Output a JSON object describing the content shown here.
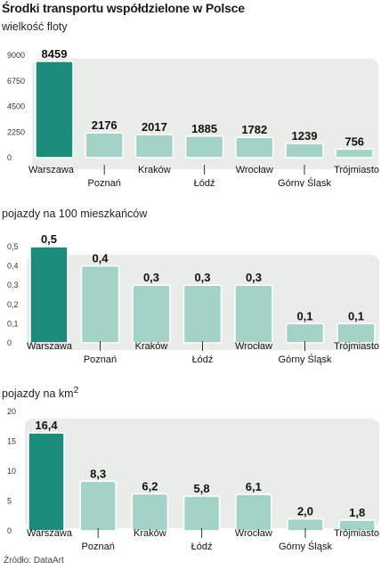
{
  "page_title": "Środki transportu współdzielone w Polsce",
  "source": "Źródło: DataArt",
  "colors": {
    "highlight": "#1a8c79",
    "bar": "#a3d3c6",
    "band": "#e9ece9",
    "tick_line": "#333333"
  },
  "chart_data": [
    {
      "type": "bar",
      "title": "wielkość floty",
      "title_sup": "",
      "categories": [
        "Warszawa",
        "Poznań",
        "Kraków",
        "Łódź",
        "Wrocław",
        "Górny Śląsk",
        "Trójmiasto"
      ],
      "values": [
        8459,
        2176,
        2017,
        1885,
        1782,
        1239,
        756
      ],
      "value_labels": [
        "8459",
        "2176",
        "2017",
        "1885",
        "1782",
        "1239",
        "756"
      ],
      "yticks": [
        "0",
        "2250",
        "4500",
        "6750",
        "9000"
      ],
      "ylim": [
        0,
        9000
      ],
      "xlabel": "",
      "ylabel": "",
      "grid": false,
      "highlight_index": 0
    },
    {
      "type": "bar",
      "title": "pojazdy na 100 mieszkańców",
      "title_sup": "",
      "categories": [
        "Warszawa",
        "Poznań",
        "Kraków",
        "Łódź",
        "Wrocław",
        "Górny Śląsk",
        "Trójmiasto"
      ],
      "values": [
        0.5,
        0.4,
        0.3,
        0.3,
        0.3,
        0.1,
        0.1
      ],
      "value_labels": [
        "0,5",
        "0,4",
        "0,3",
        "0,3",
        "0,3",
        "0,1",
        "0,1"
      ],
      "yticks": [
        "0",
        "0,1",
        "0,2",
        "0,3",
        "0,4",
        "0,5"
      ],
      "ylim": [
        0,
        0.5
      ],
      "xlabel": "",
      "ylabel": "",
      "grid": false,
      "highlight_index": 0
    },
    {
      "type": "bar",
      "title": "pojazdy na km",
      "title_sup": "2",
      "categories": [
        "Warszawa",
        "Poznań",
        "Kraków",
        "Łódź",
        "Wrocław",
        "Górny Śląsk",
        "Trójmiasto"
      ],
      "values": [
        16.4,
        8.3,
        6.2,
        5.8,
        6.1,
        2.0,
        1.8
      ],
      "value_labels": [
        "16,4",
        "8,3",
        "6,2",
        "5,8",
        "6,1",
        "2,0",
        "1,8"
      ],
      "yticks": [
        "0",
        "5",
        "10",
        "15",
        "20"
      ],
      "ylim": [
        0,
        20
      ],
      "xlabel": "",
      "ylabel": "",
      "grid": false,
      "highlight_index": 0
    }
  ]
}
